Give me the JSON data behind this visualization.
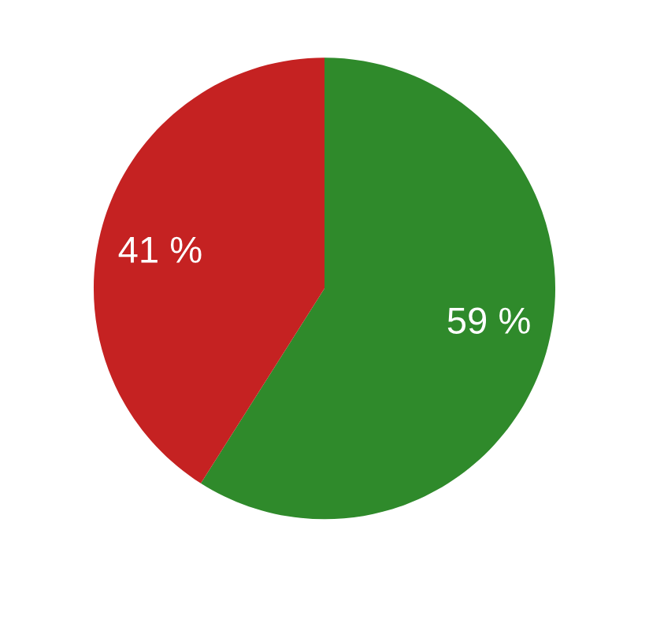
{
  "chart_data": {
    "type": "pie",
    "categories": [
      null,
      null
    ],
    "values": [
      59,
      41
    ],
    "colors": [
      "#2f8a2b",
      "#c52222"
    ],
    "value_labels": [
      "59 %",
      "41 %"
    ]
  }
}
